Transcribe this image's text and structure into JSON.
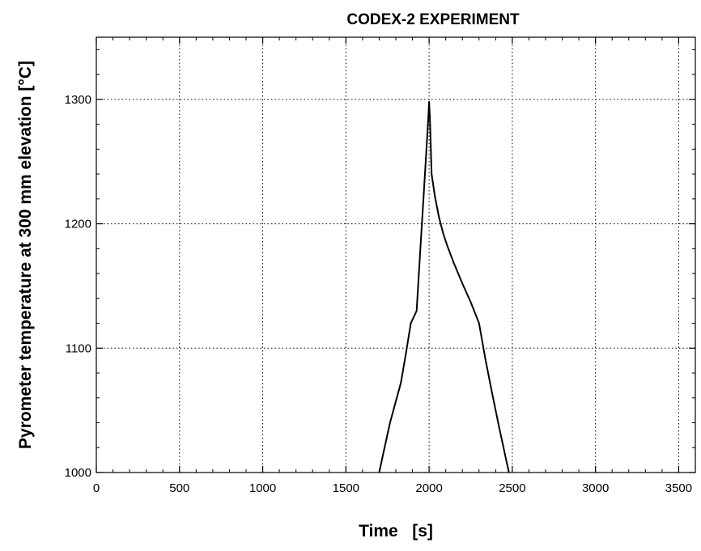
{
  "chart_data": {
    "type": "line",
    "title": "CODEX-2 EXPERIMENT",
    "xlabel": "Time   [s]",
    "ylabel": "Pyrometer temperature at 300 mm elevation  [°C]",
    "xlim": [
      0,
      3600
    ],
    "ylim": [
      1000,
      1350
    ],
    "x_ticks": [
      0,
      500,
      1000,
      1500,
      2000,
      2500,
      3000,
      3500
    ],
    "y_ticks": [
      1000,
      1100,
      1200,
      1300
    ],
    "x_tick_labels": [
      "0",
      "500",
      "1000",
      "1500",
      "2000",
      "2500",
      "3000",
      "3500"
    ],
    "y_tick_labels": [
      "1000",
      "1100",
      "1200",
      "1300"
    ],
    "grid": true,
    "series": [
      {
        "color": "#000000",
        "x": [
          1700,
          1765,
          1830,
          1860,
          1890,
          1925,
          1950,
          1975,
          1995,
          2000,
          2005,
          2015,
          2035,
          2060,
          2085,
          2110,
          2150,
          2200,
          2250,
          2300,
          2340,
          2380,
          2420,
          2460,
          2480
        ],
        "y": [
          1000,
          1040,
          1072,
          1095,
          1120,
          1130,
          1185,
          1240,
          1285,
          1298,
          1285,
          1240,
          1222,
          1205,
          1192,
          1182,
          1168,
          1152,
          1137,
          1120,
          1090,
          1063,
          1037,
          1012,
          1000
        ]
      }
    ]
  }
}
